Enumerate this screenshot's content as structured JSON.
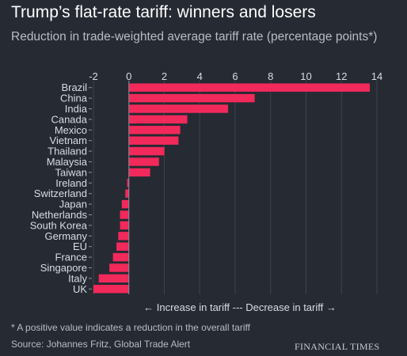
{
  "title": "Trump’s flat-rate tariff: winners and losers",
  "subtitle": "Reduction in trade-weighted average tariff rate (percentage points*)",
  "footnote": "* A positive value indicates a reduction in the overall tariff",
  "source": "Source: Johannes Fritz, Global Trade Alert",
  "brand": "FINANCIAL TIMES",
  "colors": {
    "bar": "#f2295b",
    "grid": "#3d424c",
    "zero_line": "#8a8f98",
    "background": "#262a33"
  },
  "chart_data": {
    "type": "bar",
    "orientation": "horizontal",
    "title": "Trump’s flat-rate tariff: winners and losers",
    "xlabel": "",
    "ylabel": "",
    "xlim": [
      -2,
      14
    ],
    "x_ticks": [
      -2,
      0,
      2,
      4,
      6,
      8,
      10,
      12,
      14
    ],
    "grid": true,
    "direction_label": "←  Increase in tariff --- Decrease in tariff  →",
    "categories": [
      "Brazil",
      "China",
      "India",
      "Canada",
      "Mexico",
      "Vietnam",
      "Thailand",
      "Malaysia",
      "Taiwan",
      "Ireland",
      "Switzerland",
      "Japan",
      "Netherlands",
      "South Korea",
      "Germany",
      "EU",
      "France",
      "Singapore",
      "Italy",
      "UK"
    ],
    "values": [
      13.6,
      7.1,
      5.6,
      3.3,
      2.9,
      2.8,
      2.0,
      1.7,
      1.2,
      -0.1,
      -0.2,
      -0.4,
      -0.5,
      -0.5,
      -0.6,
      -0.7,
      -0.9,
      -1.1,
      -1.7,
      -2.0
    ]
  }
}
